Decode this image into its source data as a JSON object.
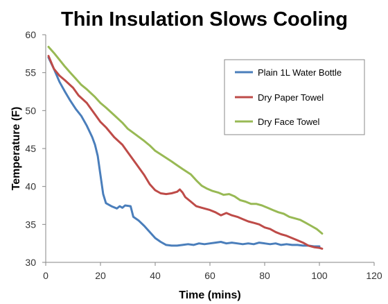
{
  "chart_data": {
    "type": "line",
    "title": "Thin Insulation Slows Cooling",
    "xlabel": "Time (mins)",
    "ylabel": "Temperature (F)",
    "xlim": [
      0,
      120
    ],
    "ylim": [
      30,
      60
    ],
    "xticks": [
      "0",
      "20",
      "40",
      "60",
      "80",
      "100",
      "120"
    ],
    "yticks": [
      "30",
      "35",
      "40",
      "45",
      "50",
      "55",
      "60"
    ],
    "grid": false,
    "legend_position": "top-right",
    "series": [
      {
        "name": "Plain 1L Water Bottle",
        "color": "#4a7ebb",
        "points": [
          [
            1,
            57.0
          ],
          [
            3,
            55.5
          ],
          [
            5,
            53.8
          ],
          [
            7,
            52.5
          ],
          [
            9,
            51.3
          ],
          [
            11,
            50.2
          ],
          [
            13,
            49.3
          ],
          [
            15,
            48.0
          ],
          [
            17,
            46.5
          ],
          [
            18,
            45.5
          ],
          [
            19,
            44.0
          ],
          [
            20,
            41.5
          ],
          [
            21,
            39.0
          ],
          [
            22,
            37.8
          ],
          [
            24,
            37.4
          ],
          [
            26,
            37.1
          ],
          [
            27,
            37.4
          ],
          [
            28,
            37.2
          ],
          [
            29,
            37.5
          ],
          [
            31,
            37.4
          ],
          [
            32,
            36.0
          ],
          [
            34,
            35.5
          ],
          [
            36,
            34.8
          ],
          [
            38,
            34.0
          ],
          [
            40,
            33.2
          ],
          [
            42,
            32.7
          ],
          [
            44,
            32.3
          ],
          [
            46,
            32.2
          ],
          [
            48,
            32.2
          ],
          [
            50,
            32.3
          ],
          [
            52,
            32.4
          ],
          [
            54,
            32.3
          ],
          [
            56,
            32.5
          ],
          [
            58,
            32.4
          ],
          [
            60,
            32.5
          ],
          [
            62,
            32.6
          ],
          [
            64,
            32.7
          ],
          [
            66,
            32.5
          ],
          [
            68,
            32.6
          ],
          [
            70,
            32.5
          ],
          [
            72,
            32.4
          ],
          [
            74,
            32.5
          ],
          [
            76,
            32.4
          ],
          [
            78,
            32.6
          ],
          [
            80,
            32.5
          ],
          [
            82,
            32.4
          ],
          [
            84,
            32.5
          ],
          [
            86,
            32.3
          ],
          [
            88,
            32.4
          ],
          [
            90,
            32.3
          ],
          [
            92,
            32.3
          ],
          [
            94,
            32.2
          ],
          [
            96,
            32.2
          ],
          [
            98,
            32.1
          ],
          [
            100,
            32.1
          ]
        ]
      },
      {
        "name": "Dry Paper Towel",
        "color": "#be4b48",
        "points": [
          [
            1,
            57.2
          ],
          [
            3,
            55.5
          ],
          [
            5,
            54.6
          ],
          [
            7,
            54.0
          ],
          [
            10,
            53.0
          ],
          [
            12,
            52.0
          ],
          [
            15,
            51.0
          ],
          [
            18,
            49.5
          ],
          [
            20,
            48.5
          ],
          [
            22,
            47.8
          ],
          [
            25,
            46.5
          ],
          [
            28,
            45.5
          ],
          [
            30,
            44.5
          ],
          [
            33,
            43.0
          ],
          [
            36,
            41.5
          ],
          [
            38,
            40.3
          ],
          [
            40,
            39.5
          ],
          [
            42,
            39.1
          ],
          [
            44,
            39.0
          ],
          [
            46,
            39.1
          ],
          [
            48,
            39.3
          ],
          [
            49,
            39.6
          ],
          [
            50,
            39.2
          ],
          [
            51,
            38.6
          ],
          [
            53,
            38.0
          ],
          [
            55,
            37.4
          ],
          [
            57,
            37.2
          ],
          [
            60,
            36.9
          ],
          [
            62,
            36.6
          ],
          [
            64,
            36.2
          ],
          [
            66,
            36.5
          ],
          [
            68,
            36.2
          ],
          [
            70,
            36.0
          ],
          [
            72,
            35.7
          ],
          [
            74,
            35.4
          ],
          [
            76,
            35.2
          ],
          [
            78,
            35.0
          ],
          [
            80,
            34.6
          ],
          [
            82,
            34.4
          ],
          [
            84,
            34.0
          ],
          [
            86,
            33.7
          ],
          [
            88,
            33.5
          ],
          [
            90,
            33.2
          ],
          [
            92,
            32.9
          ],
          [
            94,
            32.6
          ],
          [
            96,
            32.2
          ],
          [
            98,
            32.0
          ],
          [
            100,
            31.9
          ],
          [
            101,
            31.8
          ]
        ]
      },
      {
        "name": "Dry Face Towel",
        "color": "#98b954",
        "points": [
          [
            1,
            58.4
          ],
          [
            3,
            57.6
          ],
          [
            5,
            56.7
          ],
          [
            7,
            55.8
          ],
          [
            9,
            55.0
          ],
          [
            11,
            54.2
          ],
          [
            13,
            53.4
          ],
          [
            15,
            52.8
          ],
          [
            18,
            51.8
          ],
          [
            20,
            51.0
          ],
          [
            22,
            50.4
          ],
          [
            25,
            49.4
          ],
          [
            28,
            48.4
          ],
          [
            30,
            47.6
          ],
          [
            33,
            46.8
          ],
          [
            36,
            46.0
          ],
          [
            38,
            45.4
          ],
          [
            40,
            44.7
          ],
          [
            43,
            44.0
          ],
          [
            46,
            43.3
          ],
          [
            48,
            42.8
          ],
          [
            50,
            42.3
          ],
          [
            53,
            41.6
          ],
          [
            55,
            40.8
          ],
          [
            57,
            40.1
          ],
          [
            59,
            39.7
          ],
          [
            61,
            39.4
          ],
          [
            63,
            39.2
          ],
          [
            65,
            38.9
          ],
          [
            67,
            39.0
          ],
          [
            69,
            38.7
          ],
          [
            71,
            38.2
          ],
          [
            73,
            38.0
          ],
          [
            75,
            37.7
          ],
          [
            77,
            37.7
          ],
          [
            79,
            37.5
          ],
          [
            81,
            37.2
          ],
          [
            83,
            36.9
          ],
          [
            85,
            36.6
          ],
          [
            87,
            36.4
          ],
          [
            89,
            36.0
          ],
          [
            91,
            35.8
          ],
          [
            93,
            35.6
          ],
          [
            95,
            35.2
          ],
          [
            97,
            34.8
          ],
          [
            99,
            34.4
          ],
          [
            101,
            33.8
          ]
        ]
      }
    ]
  }
}
